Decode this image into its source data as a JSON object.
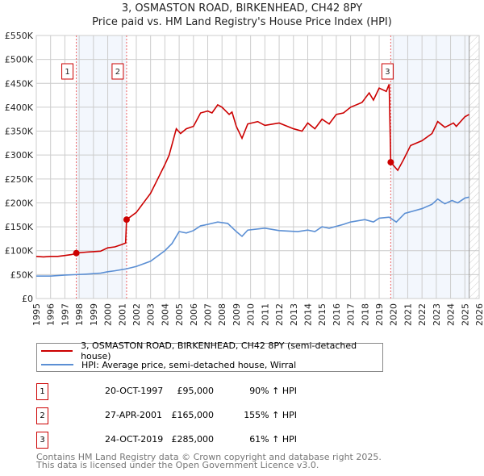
{
  "title_line1": "3, OSMASTON ROAD, BIRKENHEAD, CH42 8PY",
  "title_line2": "Price paid vs. HM Land Registry's House Price Index (HPI)",
  "chart_data": {
    "type": "line",
    "title": "3, OSMASTON ROAD, BIRKENHEAD, CH42 8PY — Price paid vs. HM Land Registry's House Price Index (HPI)",
    "xlim": [
      1995,
      2026
    ],
    "ylim": [
      0,
      550000
    ],
    "x_ticks": [
      "1995",
      "1996",
      "1997",
      "1998",
      "1999",
      "2000",
      "2001",
      "2002",
      "2003",
      "2004",
      "2005",
      "2006",
      "2007",
      "2008",
      "2009",
      "2010",
      "2011",
      "2012",
      "2013",
      "2014",
      "2015",
      "2016",
      "2017",
      "2018",
      "2019",
      "2020",
      "2021",
      "2022",
      "2023",
      "2024",
      "2025",
      "2026"
    ],
    "y_ticks": [
      {
        "v": 0,
        "label": "£0"
      },
      {
        "v": 50000,
        "label": "£50K"
      },
      {
        "v": 100000,
        "label": "£100K"
      },
      {
        "v": 150000,
        "label": "£150K"
      },
      {
        "v": 200000,
        "label": "£200K"
      },
      {
        "v": 250000,
        "label": "£250K"
      },
      {
        "v": 300000,
        "label": "£300K"
      },
      {
        "v": 350000,
        "label": "£350K"
      },
      {
        "v": 400000,
        "label": "£400K"
      },
      {
        "v": 450000,
        "label": "£450K"
      },
      {
        "v": 500000,
        "label": "£500K"
      },
      {
        "v": 550000,
        "label": "£550K"
      }
    ],
    "grid": true,
    "shaded_ranges": [
      [
        1997.8,
        2001.32
      ],
      [
        2019.81,
        2025.3
      ]
    ],
    "future_hatch_from": 2025.3,
    "series": [
      {
        "name": "3, OSMASTON ROAD, BIRKENHEAD, CH42 8PY (semi-detached house)",
        "color": "#cc0000",
        "x": [
          1995,
          1995.5,
          1996,
          1996.5,
          1997,
          1997.5,
          1997.8,
          1998.5,
          1999,
          1999.5,
          2000,
          2000.5,
          2001,
          2001.25,
          2001.32,
          2002,
          2002.5,
          2003,
          2003.5,
          2004,
          2004.3,
          2004.8,
          2005.1,
          2005.5,
          2006,
          2006.5,
          2007,
          2007.3,
          2007.7,
          2008,
          2008.5,
          2008.7,
          2009,
          2009.4,
          2009.8,
          2010.5,
          2011,
          2012,
          2013,
          2013.6,
          2014,
          2014.5,
          2015,
          2015.5,
          2016,
          2016.5,
          2017,
          2017.8,
          2018.3,
          2018.6,
          2019,
          2019.5,
          2019.7,
          2019.81,
          2020.3,
          2020.7,
          2021.2,
          2022,
          2022.7,
          2023.1,
          2023.6,
          2024.2,
          2024.4,
          2025,
          2025.3
        ],
        "y": [
          88000,
          87000,
          88000,
          88000,
          90000,
          92000,
          95000,
          97000,
          98000,
          99000,
          106000,
          108000,
          113000,
          116000,
          165000,
          180000,
          200000,
          220000,
          250000,
          280000,
          300000,
          355000,
          345000,
          355000,
          360000,
          388000,
          392000,
          388000,
          405000,
          400000,
          385000,
          390000,
          360000,
          335000,
          365000,
          370000,
          362000,
          367000,
          355000,
          350000,
          367000,
          355000,
          375000,
          365000,
          385000,
          388000,
          400000,
          410000,
          430000,
          415000,
          440000,
          433000,
          448000,
          285000,
          268000,
          290000,
          320000,
          330000,
          345000,
          370000,
          358000,
          367000,
          360000,
          380000,
          385000
        ]
      },
      {
        "name": "HPI: Average price, semi-detached house, Wirral",
        "color": "#5b8fd4",
        "x": [
          1995,
          1996,
          1997,
          1997.8,
          1998.5,
          1999.5,
          2000,
          2000.5,
          2001.3,
          2002,
          2003,
          2004,
          2004.5,
          2005,
          2005.5,
          2006,
          2006.5,
          2007,
          2007.7,
          2008.4,
          2009,
          2009.4,
          2009.8,
          2011,
          2012,
          2013.3,
          2014,
          2014.5,
          2015,
          2015.5,
          2016.5,
          2017,
          2018,
          2018.6,
          2019,
          2019.7,
          2020.2,
          2020.8,
          2022,
          2022.7,
          2023.1,
          2023.6,
          2024.1,
          2024.5,
          2025,
          2025.3
        ],
        "y": [
          47000,
          47000,
          49000,
          50000,
          51000,
          53000,
          56000,
          58000,
          62000,
          67000,
          78000,
          100000,
          115000,
          140000,
          137000,
          142000,
          152000,
          155000,
          160000,
          157000,
          140000,
          130000,
          143000,
          147000,
          142000,
          140000,
          143000,
          140000,
          150000,
          147000,
          155000,
          160000,
          165000,
          160000,
          168000,
          170000,
          160000,
          178000,
          188000,
          197000,
          208000,
          198000,
          205000,
          200000,
          210000,
          212000
        ]
      }
    ],
    "annotations": [
      {
        "label": "1",
        "x": 1997.8,
        "y": 95000
      },
      {
        "label": "2",
        "x": 2001.32,
        "y": 165000
      },
      {
        "label": "3",
        "x": 2019.81,
        "y": 285000
      }
    ]
  },
  "legend": [
    {
      "label": "3, OSMASTON ROAD, BIRKENHEAD, CH42 8PY (semi-detached house)",
      "color": "#cc0000"
    },
    {
      "label": "HPI: Average price, semi-detached house, Wirral",
      "color": "#5b8fd4"
    }
  ],
  "transactions": [
    {
      "num": "1",
      "date": "20-OCT-1997",
      "price": "£95,000",
      "hpi": "90% ↑ HPI"
    },
    {
      "num": "2",
      "date": "27-APR-2001",
      "price": "£165,000",
      "hpi": "155% ↑ HPI"
    },
    {
      "num": "3",
      "date": "24-OCT-2019",
      "price": "£285,000",
      "hpi": "61% ↑ HPI"
    }
  ],
  "footer": [
    "Contains HM Land Registry data © Crown copyright and database right 2025.",
    "This data is licensed under the Open Government Licence v3.0."
  ]
}
